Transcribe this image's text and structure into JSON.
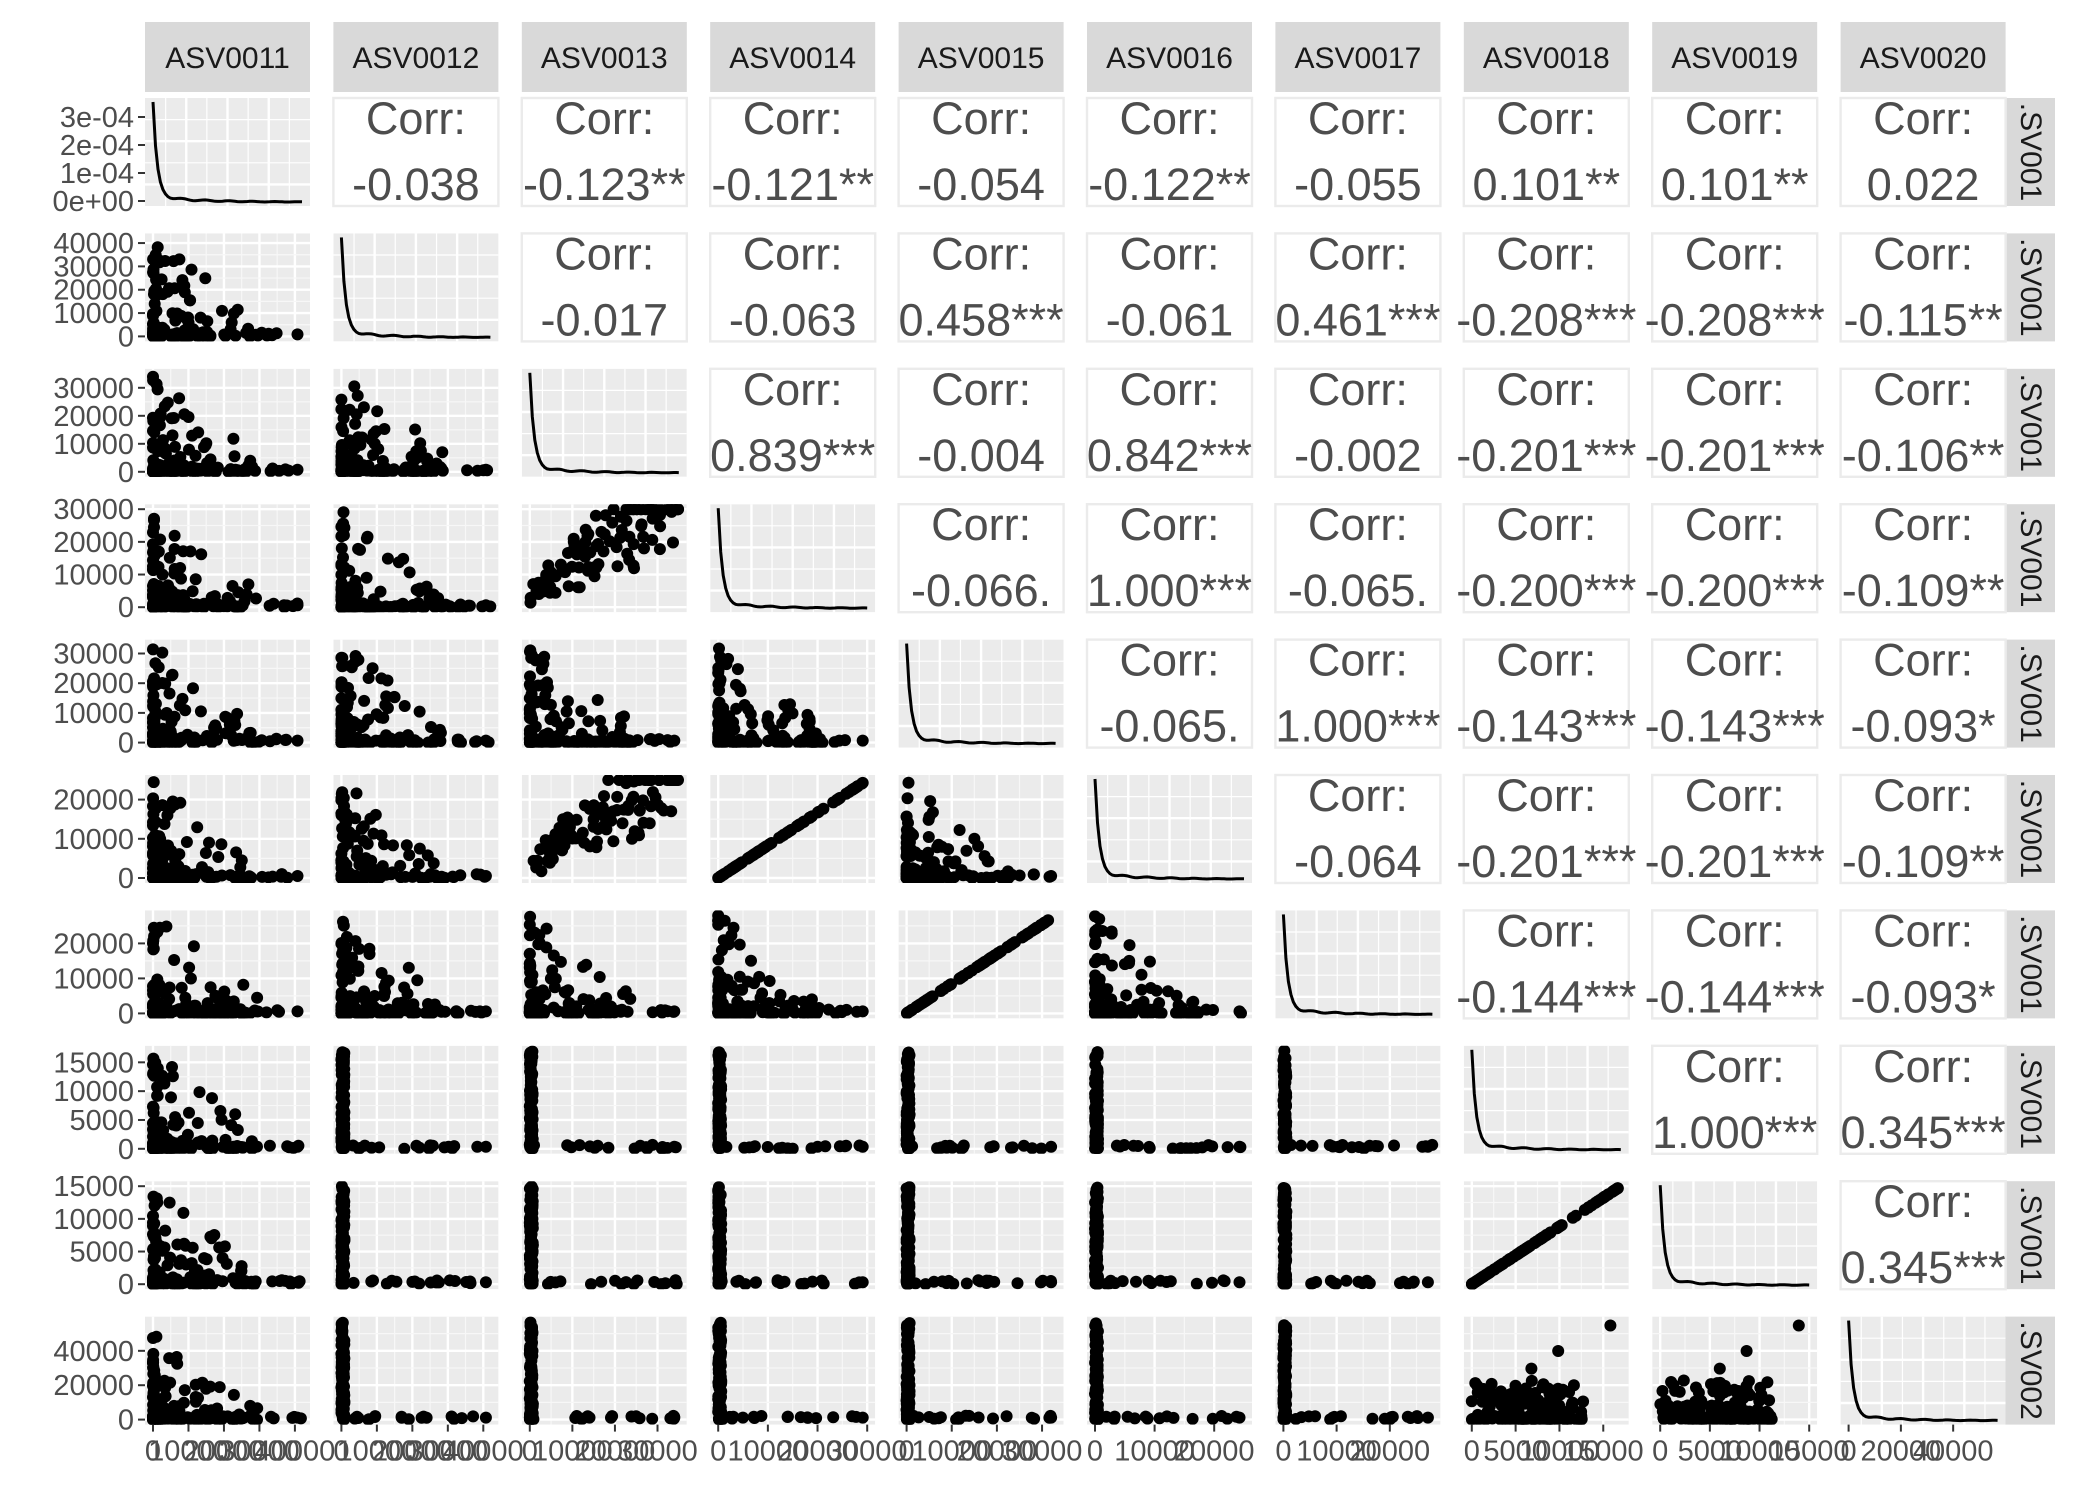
{
  "chart_data": {
    "type": "scatter",
    "variables": [
      "ASV0011",
      "ASV0012",
      "ASV0013",
      "ASV0014",
      "ASV0015",
      "ASV0016",
      "ASV0017",
      "ASV0018",
      "ASV0019",
      "ASV0020"
    ],
    "row_strip_labels": [
      ".SV001",
      ".SV001",
      ".SV001",
      ".SV001",
      ".SV001",
      ".SV001",
      ".SV001",
      ".SV001",
      ".SV001",
      ".SV002"
    ],
    "corr_label": "Corr:",
    "correlations": [
      {
        "row": 0,
        "col": 1,
        "text": "-0.038"
      },
      {
        "row": 0,
        "col": 2,
        "text": "-0.123**"
      },
      {
        "row": 0,
        "col": 3,
        "text": "-0.121**"
      },
      {
        "row": 0,
        "col": 4,
        "text": "-0.054"
      },
      {
        "row": 0,
        "col": 5,
        "text": "-0.122**"
      },
      {
        "row": 0,
        "col": 6,
        "text": "-0.055"
      },
      {
        "row": 0,
        "col": 7,
        "text": "0.101**"
      },
      {
        "row": 0,
        "col": 8,
        "text": "0.101**"
      },
      {
        "row": 0,
        "col": 9,
        "text": "0.022"
      },
      {
        "row": 1,
        "col": 2,
        "text": "-0.017"
      },
      {
        "row": 1,
        "col": 3,
        "text": "-0.063"
      },
      {
        "row": 1,
        "col": 4,
        "text": "0.458***"
      },
      {
        "row": 1,
        "col": 5,
        "text": "-0.061"
      },
      {
        "row": 1,
        "col": 6,
        "text": "0.461***"
      },
      {
        "row": 1,
        "col": 7,
        "text": "-0.208***"
      },
      {
        "row": 1,
        "col": 8,
        "text": "-0.208***"
      },
      {
        "row": 1,
        "col": 9,
        "text": "-0.115**"
      },
      {
        "row": 2,
        "col": 3,
        "text": "0.839***"
      },
      {
        "row": 2,
        "col": 4,
        "text": "-0.004"
      },
      {
        "row": 2,
        "col": 5,
        "text": "0.842***"
      },
      {
        "row": 2,
        "col": 6,
        "text": "-0.002"
      },
      {
        "row": 2,
        "col": 7,
        "text": "-0.201***"
      },
      {
        "row": 2,
        "col": 8,
        "text": "-0.201***"
      },
      {
        "row": 2,
        "col": 9,
        "text": "-0.106**"
      },
      {
        "row": 3,
        "col": 4,
        "text": "-0.066."
      },
      {
        "row": 3,
        "col": 5,
        "text": "1.000***"
      },
      {
        "row": 3,
        "col": 6,
        "text": "-0.065."
      },
      {
        "row": 3,
        "col": 7,
        "text": "-0.200***"
      },
      {
        "row": 3,
        "col": 8,
        "text": "-0.200***"
      },
      {
        "row": 3,
        "col": 9,
        "text": "-0.109**"
      },
      {
        "row": 4,
        "col": 5,
        "text": "-0.065."
      },
      {
        "row": 4,
        "col": 6,
        "text": "1.000***"
      },
      {
        "row": 4,
        "col": 7,
        "text": "-0.143***"
      },
      {
        "row": 4,
        "col": 8,
        "text": "-0.143***"
      },
      {
        "row": 4,
        "col": 9,
        "text": "-0.093*"
      },
      {
        "row": 5,
        "col": 6,
        "text": "-0.064"
      },
      {
        "row": 5,
        "col": 7,
        "text": "-0.201***"
      },
      {
        "row": 5,
        "col": 8,
        "text": "-0.201***"
      },
      {
        "row": 5,
        "col": 9,
        "text": "-0.109**"
      },
      {
        "row": 6,
        "col": 7,
        "text": "-0.144***"
      },
      {
        "row": 6,
        "col": 8,
        "text": "-0.144***"
      },
      {
        "row": 6,
        "col": 9,
        "text": "-0.093*"
      },
      {
        "row": 7,
        "col": 8,
        "text": "1.000***"
      },
      {
        "row": 7,
        "col": 9,
        "text": "0.345***"
      },
      {
        "row": 8,
        "col": 9,
        "text": "0.345***"
      }
    ],
    "y_ticks": [
      [
        "0e+00",
        "1e-04",
        "2e-04",
        "3e-04"
      ],
      [
        "0",
        "10000",
        "20000",
        "30000",
        "40000"
      ],
      [
        "0",
        "10000",
        "20000",
        "30000"
      ],
      [
        "0",
        "10000",
        "20000",
        "30000"
      ],
      [
        "0",
        "10000",
        "20000",
        "30000"
      ],
      [
        "0",
        "10000",
        "20000"
      ],
      [
        "0",
        "10000",
        "20000"
      ],
      [
        "0",
        "5000",
        "10000",
        "15000"
      ],
      [
        "0",
        "5000",
        "10000",
        "15000"
      ],
      [
        "0",
        "20000",
        "40000"
      ]
    ],
    "y_ranges": [
      [
        0,
        0.00035
      ],
      [
        0,
        42000
      ],
      [
        0,
        35000
      ],
      [
        0,
        30000
      ],
      [
        0,
        33000
      ],
      [
        0,
        25000
      ],
      [
        0,
        28000
      ],
      [
        0,
        17000
      ],
      [
        0,
        15000
      ],
      [
        0,
        57000
      ]
    ],
    "x_ticks": [
      [
        "0",
        "10000",
        "20000",
        "30000",
        "40000"
      ],
      [
        "0",
        "10000",
        "20000",
        "30000",
        "40000"
      ],
      [
        "0",
        "10000",
        "20000",
        "30000"
      ],
      [
        "0",
        "10000",
        "20000",
        "30000"
      ],
      [
        "0",
        "10000",
        "20000",
        "30000"
      ],
      [
        "0",
        "10000",
        "20000"
      ],
      [
        "0",
        "10000",
        "20000"
      ],
      [
        "0",
        "5000",
        "10000",
        "15000"
      ],
      [
        "0",
        "5000",
        "10000",
        "15000"
      ],
      [
        "0",
        "20000",
        "40000"
      ]
    ],
    "x_ranges": [
      [
        0,
        42000
      ],
      [
        0,
        42000
      ],
      [
        0,
        35000
      ],
      [
        0,
        30000
      ],
      [
        0,
        33000
      ],
      [
        0,
        25000
      ],
      [
        0,
        28000
      ],
      [
        0,
        17000
      ],
      [
        0,
        15000
      ],
      [
        0,
        57000
      ]
    ],
    "grid": true,
    "point_color": "#000000"
  }
}
